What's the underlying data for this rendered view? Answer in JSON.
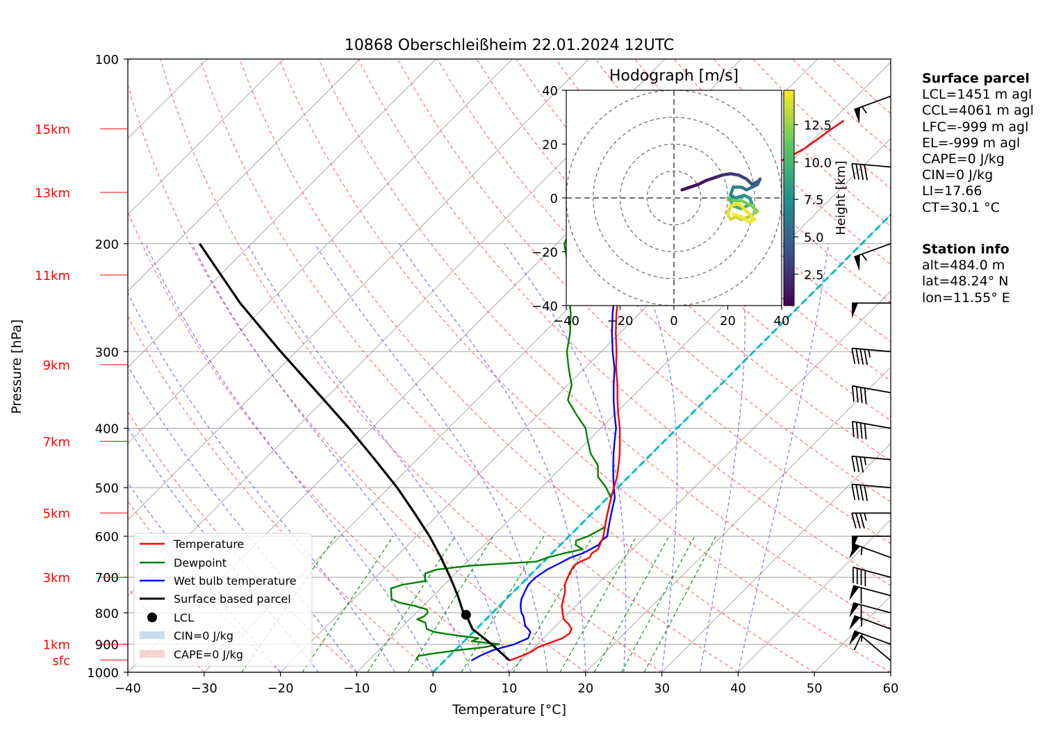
{
  "chart_data": {
    "type": "skew-t",
    "title": "10868 Oberschleißheim 22.01.2024 12UTC",
    "xlabel": "Temperature [°C]",
    "ylabel": "Pressure [hPa]",
    "xlim": [
      -40,
      60
    ],
    "ylim": [
      1000,
      100
    ],
    "x_ticks": [
      "−40",
      "−30",
      "−20",
      "−10",
      "0",
      "10",
      "20",
      "30",
      "40",
      "50",
      "60"
    ],
    "y_ticks": [
      {
        "p": 100,
        "label": "100"
      },
      {
        "p": 200,
        "label": "200"
      },
      {
        "p": 300,
        "label": "300"
      },
      {
        "p": 400,
        "label": "400"
      },
      {
        "p": 500,
        "label": "500"
      },
      {
        "p": 600,
        "label": "600"
      },
      {
        "p": 700,
        "label": "700"
      },
      {
        "p": 800,
        "label": "800"
      },
      {
        "p": 900,
        "label": "900"
      },
      {
        "p": 1000,
        "label": "1000"
      }
    ],
    "height_labels": [
      {
        "label": "15km",
        "p": 130
      },
      {
        "label": "13km",
        "p": 165
      },
      {
        "label": "11km",
        "p": 225
      },
      {
        "label": "9km",
        "p": 315
      },
      {
        "label": "7km",
        "p": 420
      },
      {
        "label": "5km",
        "p": 550
      },
      {
        "label": "3km",
        "p": 700
      },
      {
        "label": "1km",
        "p": 900
      },
      {
        "label": "sfc",
        "p": 955
      }
    ],
    "grid": true,
    "series": [
      {
        "name": "Temperature",
        "color": "#ff0000",
        "p": [
          957,
          940,
          925,
          910,
          895,
          880,
          865,
          850,
          835,
          820,
          800,
          780,
          760,
          740,
          720,
          700,
          685,
          670,
          660,
          650,
          640,
          630,
          600,
          580,
          560,
          540,
          520,
          500,
          480,
          460,
          440,
          420,
          400,
          380,
          360,
          340,
          320,
          300,
          280,
          260,
          240,
          220,
          210,
          200,
          190,
          180,
          175,
          170,
          165,
          160,
          155,
          150,
          145,
          140,
          135,
          130,
          126
        ],
        "t": [
          8.5,
          9.5,
          10.2,
          10.5,
          11.5,
          12.5,
          12.8,
          12.5,
          11.5,
          10.2,
          9.2,
          8.2,
          7.5,
          6.8,
          5.8,
          5.2,
          4.8,
          4.5,
          4.8,
          5.5,
          5.2,
          5.5,
          4.5,
          3.5,
          2.5,
          1.5,
          0.5,
          -0.5,
          -1.5,
          -2.8,
          -4.2,
          -5.8,
          -7.5,
          -9.5,
          -11.5,
          -13.5,
          -15.8,
          -18.0,
          -20.5,
          -23.0,
          -25.5,
          -28.5,
          -30.5,
          -32.5,
          -33.8,
          -33.5,
          -32.5,
          -31.5,
          -30.0,
          -27.5,
          -25.0,
          -22.5,
          -21.0,
          -20.0,
          -19.5,
          -19.0,
          -18.5
        ]
      },
      {
        "name": "Dewpoint",
        "color": "#008000",
        "p": [
          957,
          948,
          940,
          930,
          920,
          910,
          900,
          890,
          880,
          870,
          860,
          850,
          840,
          830,
          820,
          810,
          800,
          790,
          780,
          770,
          760,
          750,
          740,
          730,
          720,
          710,
          700,
          690,
          680,
          670,
          660,
          650,
          640,
          630,
          620,
          610,
          600,
          580,
          560,
          540,
          520,
          500,
          480,
          460,
          440,
          420,
          400,
          380,
          360,
          340,
          320,
          300,
          280,
          260,
          240,
          225,
          210,
          200,
          190,
          180,
          170,
          160,
          150,
          140,
          130,
          125
        ],
        "t": [
          -3.5,
          -4.0,
          -4.0,
          -2.0,
          0.5,
          3.5,
          5.0,
          1.0,
          1.5,
          -2.0,
          -5.0,
          -6.5,
          -7.0,
          -7.5,
          -9.0,
          -8.5,
          -8.5,
          -9.0,
          -11.0,
          -13.5,
          -15.0,
          -15.5,
          -16.0,
          -16.5,
          -15.5,
          -13.0,
          -13.5,
          -14.0,
          -13.0,
          -9.0,
          -1.0,
          0.0,
          1.5,
          3.5,
          2.0,
          1.5,
          2.5,
          3.5,
          2.5,
          1.5,
          0.5,
          -1.5,
          -4.0,
          -5.5,
          -8.0,
          -10.0,
          -12.0,
          -15.0,
          -18.0,
          -19.5,
          -22.0,
          -24.5,
          -26.5,
          -29.0,
          -32.0,
          -33.5,
          -37.0,
          -39.0,
          -40.0,
          -41.5,
          -41.0,
          -44.0,
          -47.5,
          -49.5,
          -52.0,
          -53.5
        ]
      },
      {
        "name": "Wet bulb temperature",
        "color": "#0000ff",
        "p": [
          957,
          940,
          920,
          900,
          880,
          860,
          850,
          840,
          830,
          820,
          810,
          800,
          780,
          760,
          740,
          720,
          700,
          680,
          660,
          650,
          640,
          630,
          620,
          610,
          600,
          580,
          560,
          540,
          520,
          500,
          480,
          460,
          440,
          420,
          400,
          380,
          360,
          340,
          320,
          300,
          280,
          260,
          240,
          220,
          210,
          200,
          190,
          180,
          175,
          170,
          165,
          160,
          155,
          150,
          145,
          140,
          135,
          130,
          126
        ],
        "t": [
          3.5,
          4.0,
          5.0,
          7.0,
          8.0,
          7.5,
          6.8,
          6.0,
          5.5,
          5.0,
          4.5,
          3.8,
          2.8,
          2.0,
          1.5,
          1.0,
          1.0,
          1.5,
          2.5,
          3.0,
          4.0,
          4.5,
          5.0,
          4.8,
          5.0,
          4.0,
          3.0,
          2.0,
          1.0,
          -0.5,
          -2.0,
          -3.5,
          -5.0,
          -6.5,
          -8.0,
          -10.0,
          -12.0,
          -14.0,
          -16.0,
          -18.5,
          -21.0,
          -23.5,
          -26.0,
          -29.0,
          -31.0,
          -32.8,
          -34.0,
          -33.5,
          -32.5,
          -31.5,
          -30.0,
          -27.5,
          -25.0,
          -22.5,
          -21.0,
          -20.0,
          -19.5,
          -19.0,
          -18.5
        ]
      },
      {
        "name": "Surface based parcel",
        "color": "#000000",
        "p": [
          957,
          900,
          850,
          806,
          800,
          750,
          700,
          650,
          600,
          550,
          500,
          450,
          400,
          350,
          300,
          250,
          200
        ],
        "t": [
          8.5,
          4.0,
          -0.5,
          -3.2,
          -3.8,
          -6.8,
          -10.2,
          -14.0,
          -18.3,
          -23.3,
          -28.9,
          -35.5,
          -43.0,
          -51.8,
          -62.0,
          -73.7,
          -86.8
        ]
      },
      {
        "name": "LCL",
        "color": "#000000",
        "p": [
          806
        ],
        "t": [
          -3.2
        ]
      },
      {
        "name": "CIN=0 J/kg",
        "color": "#a6c8e0"
      },
      {
        "name": "CAPE=0 J/kg",
        "color": "#f4b4b4"
      }
    ],
    "freezing_level": {
      "color": "#00c0c0",
      "t": 0
    },
    "wind_barbs": [
      {
        "p": 957,
        "speed_kt": 10,
        "dir": 230
      },
      {
        "p": 900,
        "speed_kt": 55,
        "dir": 250
      },
      {
        "p": 850,
        "speed_kt": 55,
        "dir": 250
      },
      {
        "p": 800,
        "speed_kt": 60,
        "dir": 255
      },
      {
        "p": 750,
        "speed_kt": 60,
        "dir": 255
      },
      {
        "p": 700,
        "speed_kt": 40,
        "dir": 255
      },
      {
        "p": 650,
        "speed_kt": 55,
        "dir": 250
      },
      {
        "p": 600,
        "speed_kt": 50,
        "dir": 270
      },
      {
        "p": 550,
        "speed_kt": 35,
        "dir": 270
      },
      {
        "p": 500,
        "speed_kt": 40,
        "dir": 265
      },
      {
        "p": 450,
        "speed_kt": 35,
        "dir": 265
      },
      {
        "p": 400,
        "speed_kt": 40,
        "dir": 260
      },
      {
        "p": 350,
        "speed_kt": 40,
        "dir": 260
      },
      {
        "p": 300,
        "speed_kt": 45,
        "dir": 265
      },
      {
        "p": 250,
        "speed_kt": 50,
        "dir": 270
      },
      {
        "p": 200,
        "speed_kt": 55,
        "dir": 290
      },
      {
        "p": 150,
        "speed_kt": 40,
        "dir": 265
      },
      {
        "p": 115,
        "speed_kt": 55,
        "dir": 290
      }
    ],
    "hodograph": {
      "title": "Hodograph [m/s]",
      "xlim": [
        -40,
        40
      ],
      "ylim": [
        -40,
        40
      ],
      "x_ticks": [
        "−40",
        "−20",
        "0",
        "20",
        "40"
      ],
      "y_ticks": [
        "40",
        "20",
        "0",
        "−20",
        "−40"
      ],
      "rings": [
        10,
        20,
        30,
        40
      ],
      "colorbar_label": "Height [km]",
      "colorbar_ticks": [
        "2.5",
        "5.0",
        "7.5",
        "10.0",
        "12.5"
      ],
      "colorbar_range": [
        0.4,
        14.8
      ],
      "u": [
        3,
        6,
        9,
        12,
        15,
        18,
        21,
        24,
        27,
        29,
        31,
        32,
        31,
        29,
        27,
        25,
        22,
        21,
        23,
        26,
        28,
        29,
        27,
        25,
        22,
        21,
        20,
        22,
        25,
        29,
        31,
        28,
        25,
        23,
        21,
        20,
        21,
        24,
        27,
        30,
        28,
        25,
        22
      ],
      "v": [
        3,
        4,
        5,
        6.5,
        7.5,
        8.5,
        9,
        8.5,
        7,
        5,
        6,
        7,
        5,
        4,
        3,
        4,
        4,
        1,
        0,
        1,
        0,
        -2,
        -3,
        -4,
        -3,
        -1,
        0,
        -1,
        -1,
        -3,
        -5,
        -7,
        -8,
        -7,
        -8,
        -6,
        -3,
        -2,
        -5,
        -8,
        -9,
        -7,
        -6
      ],
      "h": [
        0.4,
        0.8,
        1.2,
        1.6,
        2.0,
        2.4,
        2.8,
        3.2,
        3.6,
        4.0,
        4.4,
        4.8,
        5.2,
        5.6,
        6.0,
        6.4,
        6.8,
        7.2,
        7.6,
        8.0,
        8.4,
        8.8,
        9.2,
        9.6,
        10.0,
        10.4,
        10.8,
        11.2,
        11.6,
        12.0,
        12.4,
        12.8,
        13.2,
        13.6,
        14.0,
        14.2,
        14.4,
        14.5,
        14.6,
        14.7,
        14.7,
        14.8,
        14.8
      ]
    }
  },
  "surface_parcel": {
    "heading": "Surface parcel",
    "lines": [
      "LCL=1451 m agl",
      "CCL=4061 m agl",
      "LFC=-999 m agl",
      "EL=-999 m agl",
      "CAPE=0 J/kg",
      "CIN=0 J/kg",
      "LI=17.66",
      "CT=30.1 °C"
    ]
  },
  "station_info": {
    "heading": "Station info",
    "lines": [
      "alt=484.0 m",
      "lat=48.24° N",
      "lon=11.55° E"
    ]
  }
}
